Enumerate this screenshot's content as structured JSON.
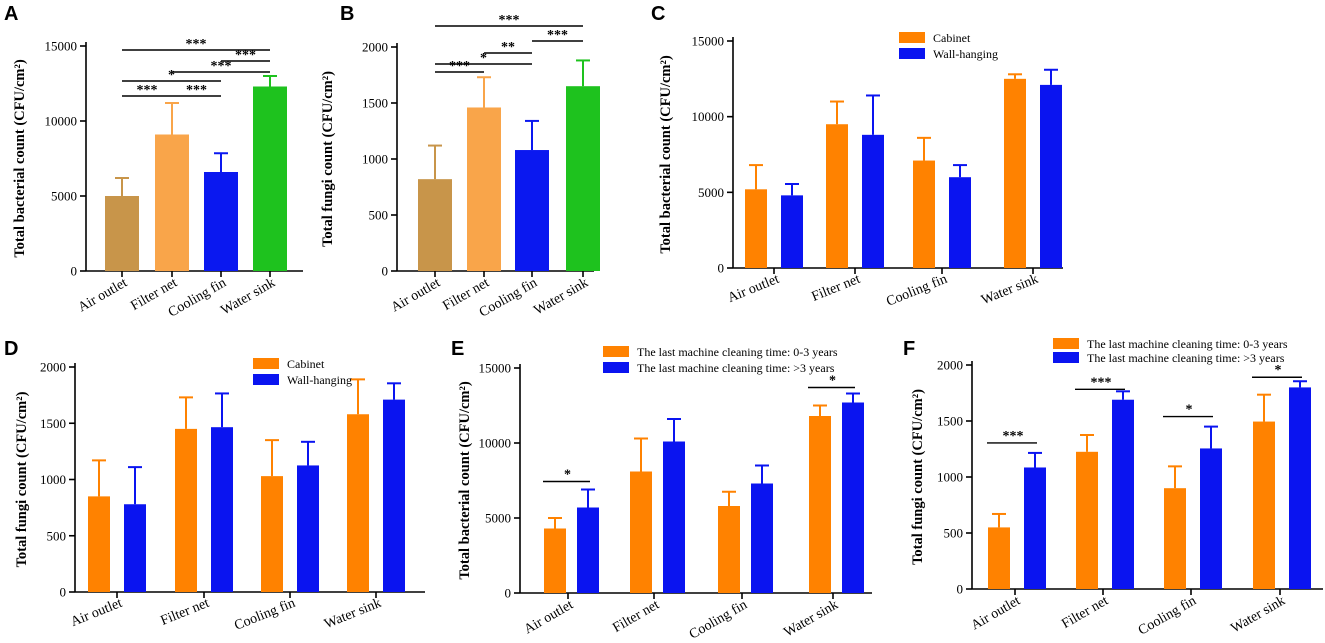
{
  "colors": {
    "air_outlet": "#c8954a",
    "filter_net": "#f9a54a",
    "cooling_fin": "#0a18f0",
    "water_sink": "#1ec21e",
    "orange": "#ff8200",
    "blue": "#0a14f0",
    "axis": "#000000"
  },
  "chart_data": [
    {
      "panel": "A",
      "type": "bar",
      "ylabel": "Total bacterial count (CFU/cm²)",
      "ylim": [
        0,
        15000
      ],
      "yticks": [
        0,
        5000,
        10000,
        15000
      ],
      "categories": [
        "Air outlet",
        "Filter net",
        "Cooling fin",
        "Water sink"
      ],
      "series": [
        {
          "name": "",
          "values": [
            5000,
            9100,
            6600,
            12300
          ],
          "errors": [
            1200,
            2100,
            1250,
            700
          ],
          "colors": [
            "#c8954a",
            "#f9a54a",
            "#0a18f0",
            "#1ec21e"
          ]
        }
      ],
      "significance": [
        {
          "from": 0,
          "to": 3,
          "label": "***"
        },
        {
          "from": 2,
          "to": 3,
          "label": "***"
        },
        {
          "from": 1,
          "to": 3,
          "label": "***"
        },
        {
          "from": 0,
          "to": 2,
          "label": "*"
        },
        {
          "from": 0,
          "to": 1,
          "label": "***"
        },
        {
          "from": 1,
          "to": 2,
          "label": "***"
        }
      ]
    },
    {
      "panel": "B",
      "type": "bar",
      "ylabel": "Total fungi count (CFU/cm²)",
      "ylim": [
        0,
        2000
      ],
      "yticks": [
        0,
        500,
        1000,
        1500,
        2000
      ],
      "categories": [
        "Air outlet",
        "Filter net",
        "Cooling fin",
        "Water sink"
      ],
      "series": [
        {
          "name": "",
          "values": [
            820,
            1460,
            1080,
            1650
          ],
          "errors": [
            300,
            270,
            260,
            230
          ],
          "colors": [
            "#c8954a",
            "#f9a54a",
            "#0a18f0",
            "#1ec21e"
          ]
        }
      ],
      "significance": [
        {
          "from": 0,
          "to": 3,
          "label": "***"
        },
        {
          "from": 2,
          "to": 3,
          "label": "***"
        },
        {
          "from": 1,
          "to": 2,
          "label": "**"
        },
        {
          "from": 0,
          "to": 2,
          "label": "*"
        },
        {
          "from": 0,
          "to": 1,
          "label": "***"
        }
      ]
    },
    {
      "panel": "C",
      "type": "bar",
      "ylabel": "Total bacterial count (CFU/cm²)",
      "ylim": [
        0,
        15000
      ],
      "yticks": [
        0,
        5000,
        10000,
        15000
      ],
      "categories": [
        "Air outlet",
        "Filter net",
        "Cooling fin",
        "Water sink"
      ],
      "legend": [
        "Cabinet",
        "Wall-hanging"
      ],
      "series": [
        {
          "name": "Cabinet",
          "values": [
            5200,
            9500,
            7100,
            12500
          ],
          "errors": [
            1600,
            1500,
            1500,
            300
          ],
          "color": "#ff8200"
        },
        {
          "name": "Wall-hanging",
          "values": [
            4800,
            8800,
            6000,
            12100
          ],
          "errors": [
            750,
            2600,
            800,
            1000
          ],
          "color": "#0a14f0"
        }
      ],
      "significance": []
    },
    {
      "panel": "D",
      "type": "bar",
      "ylabel": "Total  fungi count (CFU/cm²)",
      "ylim": [
        0,
        2000
      ],
      "yticks": [
        0,
        500,
        1000,
        1500,
        2000
      ],
      "categories": [
        "Air outlet",
        "Filter net",
        "Cooling fin",
        "Water sink"
      ],
      "legend": [
        "Cabinet",
        "Wall-hanging"
      ],
      "series": [
        {
          "name": "Cabinet",
          "values": [
            850,
            1450,
            1030,
            1580
          ],
          "errors": [
            320,
            280,
            320,
            310
          ],
          "color": "#ff8200"
        },
        {
          "name": "Wall-hanging",
          "values": [
            780,
            1465,
            1125,
            1710
          ],
          "errors": [
            330,
            300,
            210,
            145
          ],
          "color": "#0a14f0"
        }
      ],
      "significance": []
    },
    {
      "panel": "E",
      "type": "bar",
      "ylabel": "Total bacterial count (CFU/cm²)",
      "ylim": [
        0,
        15000
      ],
      "yticks": [
        0,
        5000,
        10000,
        15000
      ],
      "categories": [
        "Air outlet",
        "Filter net",
        "Cooling fin",
        "Water sink"
      ],
      "legend": [
        "The last machine cleaning time: 0-3 years",
        "The last machine cleaning time: >3 years"
      ],
      "series": [
        {
          "name": "The last machine cleaning time: 0-3 years",
          "values": [
            4300,
            8100,
            5800,
            11800
          ],
          "errors": [
            700,
            2200,
            950,
            700
          ],
          "color": "#ff8200"
        },
        {
          "name": "The last machine cleaning time: >3 years",
          "values": [
            5700,
            10100,
            7300,
            12700
          ],
          "errors": [
            1200,
            1500,
            1200,
            600
          ],
          "color": "#0a14f0"
        }
      ],
      "significance": [
        {
          "group": 0,
          "label": "*"
        },
        {
          "group": 3,
          "label": "*"
        }
      ]
    },
    {
      "panel": "F",
      "type": "bar",
      "ylabel": "Total fungi count (CFU/cm²)",
      "ylim": [
        0,
        2000
      ],
      "yticks": [
        0,
        500,
        1000,
        1500,
        2000
      ],
      "categories": [
        "Air outlet",
        "Filter net",
        "Cooling fin",
        "Water sink"
      ],
      "legend": [
        "The last machine cleaning time: 0-3 years",
        "The last machine cleaning time: >3 years"
      ],
      "series": [
        {
          "name": "The last machine cleaning time: 0-3 years",
          "values": [
            550,
            1225,
            900,
            1495
          ],
          "errors": [
            120,
            150,
            195,
            240
          ],
          "color": "#ff8200"
        },
        {
          "name": "The last machine cleaning time: >3 years",
          "values": [
            1085,
            1690,
            1255,
            1800
          ],
          "errors": [
            130,
            75,
            195,
            55
          ],
          "color": "#0a14f0"
        }
      ],
      "significance": [
        {
          "group": 0,
          "label": "***"
        },
        {
          "group": 1,
          "label": "***"
        },
        {
          "group": 2,
          "label": "*"
        },
        {
          "group": 3,
          "label": "*"
        }
      ]
    }
  ]
}
